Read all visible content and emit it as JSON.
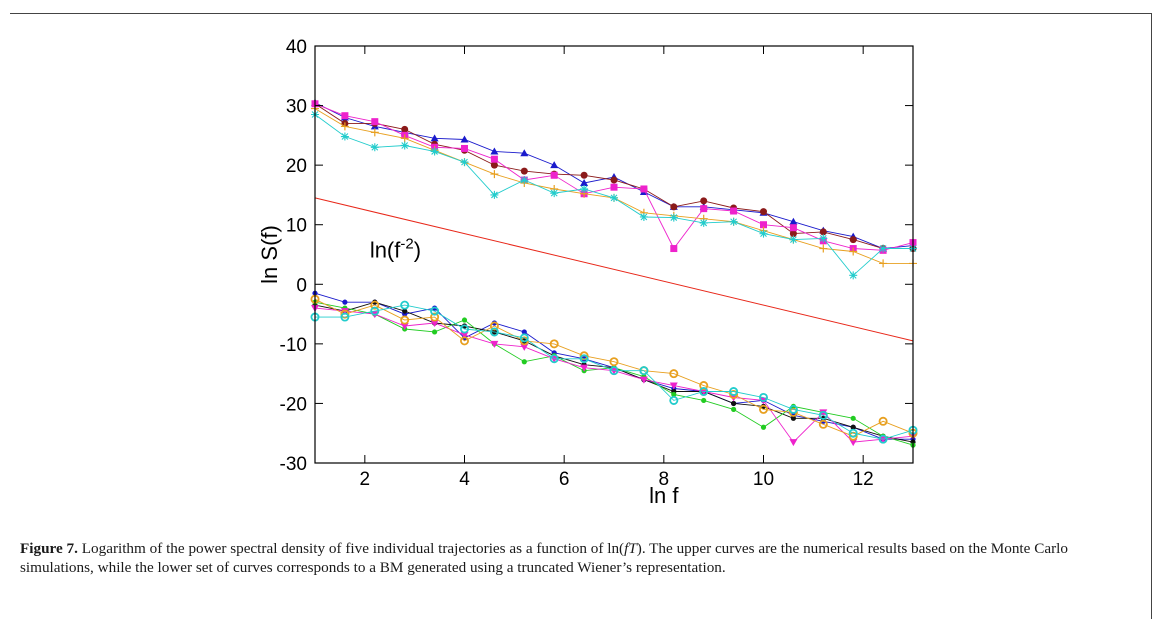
{
  "caption": {
    "label": "Figure 7.",
    "text_before": " Logarithm of the power spectral density of five individual trajectories as a function of ln(",
    "formula": "fT",
    "text_after": "). The upper curves are the numerical results based on the Monte Carlo simulations, while the lower set of curves corresponds to a BM generated using a truncated Wiener’s representation."
  },
  "chart_data": {
    "type": "line",
    "xlabel": "ln f",
    "ylabel": "ln S(f)",
    "xlim": [
      1,
      13
    ],
    "ylim": [
      -30,
      40
    ],
    "xticks": [
      2,
      4,
      6,
      8,
      10,
      12
    ],
    "yticks": [
      -30,
      -20,
      -10,
      0,
      10,
      20,
      30,
      40
    ],
    "grid": false,
    "x": [
      1.0,
      1.6,
      2.2,
      2.8,
      3.4,
      4.0,
      4.6,
      5.2,
      5.8,
      6.4,
      7.0,
      7.6,
      8.2,
      8.8,
      9.4,
      10.0,
      10.6,
      11.2,
      11.8,
      12.4,
      13.0
    ],
    "reference_line": {
      "label_base": "ln(f",
      "label_exp": "-2",
      "label_close": ")",
      "x": [
        1,
        13
      ],
      "y": [
        14.5,
        -9.5
      ],
      "color": "#e8281a"
    },
    "series": [
      {
        "group": "upper",
        "marker": "triangle",
        "color": "#1a1acc",
        "values": [
          30.5,
          28.0,
          26.5,
          25.5,
          24.5,
          24.3,
          22.3,
          22.0,
          20.0,
          17.0,
          18.0,
          15.5,
          13.0,
          13.0,
          12.5,
          12.0,
          10.5,
          9.0,
          8.0,
          6.0,
          6.5
        ]
      },
      {
        "group": "upper",
        "marker": "circle",
        "color": "#8b1a1a",
        "values": [
          30.3,
          27.0,
          27.0,
          26.0,
          23.5,
          22.5,
          20.0,
          19.0,
          18.5,
          18.3,
          17.5,
          16.0,
          13.0,
          14.0,
          12.8,
          12.2,
          8.5,
          8.8,
          7.5,
          6.0,
          6.0
        ]
      },
      {
        "group": "upper",
        "marker": "square",
        "color": "#ee22cc",
        "values": [
          30.3,
          28.3,
          27.3,
          25.0,
          23.0,
          22.8,
          21.0,
          17.5,
          18.3,
          15.2,
          16.3,
          16.0,
          6.0,
          12.7,
          12.3,
          10.0,
          9.5,
          7.3,
          6.0,
          5.7,
          7.0
        ]
      },
      {
        "group": "upper",
        "marker": "plus",
        "color": "#e8a020",
        "values": [
          29.5,
          26.5,
          25.5,
          24.5,
          22.5,
          20.5,
          18.5,
          17.0,
          16.0,
          15.2,
          14.5,
          12.0,
          11.5,
          11.0,
          10.5,
          9.0,
          7.5,
          6.0,
          5.5,
          3.5,
          3.5
        ]
      },
      {
        "group": "upper",
        "marker": "star",
        "color": "#22cccc",
        "values": [
          28.5,
          24.8,
          23.0,
          23.3,
          22.3,
          20.5,
          15.0,
          17.5,
          15.3,
          16.0,
          14.5,
          11.3,
          11.2,
          10.3,
          10.5,
          8.5,
          7.5,
          7.7,
          1.5,
          6.0,
          6.0
        ]
      },
      {
        "group": "lower",
        "marker": "dot",
        "color": "#1a1acc",
        "values": [
          -1.5,
          -3.0,
          -3.0,
          -5.0,
          -4.0,
          -9.0,
          -6.5,
          -8.0,
          -11.5,
          -12.5,
          -14.0,
          -16.0,
          -17.5,
          -18.0,
          -20.0,
          -19.5,
          -22.0,
          -23.0,
          -24.0,
          -26.0,
          -26.0
        ]
      },
      {
        "group": "lower",
        "marker": "dot",
        "color": "#111111",
        "values": [
          -3.5,
          -4.5,
          -3.0,
          -4.5,
          -6.5,
          -7.0,
          -8.0,
          -9.5,
          -12.0,
          -13.5,
          -14.0,
          -16.0,
          -18.0,
          -18.0,
          -20.0,
          -20.5,
          -22.5,
          -22.5,
          -24.0,
          -25.5,
          -26.5
        ]
      },
      {
        "group": "lower",
        "marker": "dot",
        "color": "#22cc22",
        "values": [
          -3.0,
          -4.0,
          -5.0,
          -7.5,
          -8.0,
          -6.0,
          -10.0,
          -13.0,
          -12.0,
          -14.5,
          -14.0,
          -15.5,
          -18.5,
          -19.5,
          -21.0,
          -24.0,
          -20.5,
          -21.5,
          -22.5,
          -25.5,
          -27.0
        ]
      },
      {
        "group": "lower",
        "marker": "triangle-down",
        "color": "#ee22cc",
        "values": [
          -4.0,
          -4.5,
          -5.0,
          -7.0,
          -6.5,
          -8.5,
          -10.0,
          -10.5,
          -12.5,
          -14.0,
          -14.5,
          -16.0,
          -17.0,
          -18.0,
          -19.0,
          -19.5,
          -26.5,
          -21.5,
          -26.5,
          -26.0,
          -25.5
        ]
      },
      {
        "group": "lower",
        "marker": "open-circle",
        "color": "#e8a020",
        "values": [
          -2.5,
          -5.0,
          -3.5,
          -6.0,
          -5.5,
          -9.5,
          -7.0,
          -9.5,
          -10.0,
          -12.0,
          -13.0,
          -14.5,
          -15.0,
          -17.0,
          -18.5,
          -21.0,
          -21.5,
          -23.5,
          -25.5,
          -23.0,
          -25.0
        ]
      },
      {
        "group": "lower",
        "marker": "open-circle",
        "color": "#22cccc",
        "values": [
          -5.5,
          -5.5,
          -4.5,
          -3.5,
          -4.5,
          -7.5,
          -8.0,
          -9.0,
          -12.5,
          -12.5,
          -14.5,
          -14.5,
          -19.5,
          -18.0,
          -18.0,
          -19.0,
          -21.0,
          -22.0,
          -25.0,
          -26.0,
          -24.5
        ]
      }
    ]
  }
}
